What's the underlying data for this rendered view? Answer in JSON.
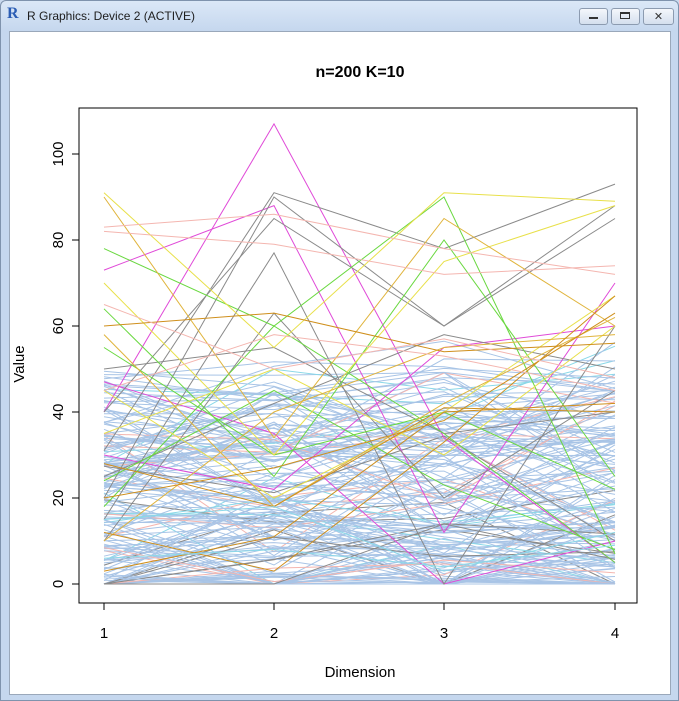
{
  "window": {
    "title": "R Graphics: Device 2 (ACTIVE)",
    "app_icon": "R",
    "controls": {
      "minimize_icon": "minimize-icon",
      "maximize_icon": "maximize-icon",
      "close_label": "✕"
    }
  },
  "chart_data": {
    "type": "line",
    "title": "n=200 K=10",
    "xlabel": "Dimension",
    "ylabel": "Value",
    "x": [
      1,
      2,
      3,
      4
    ],
    "xlim": [
      1,
      4
    ],
    "ylim": [
      0,
      107
    ],
    "x_ticks": [
      "1",
      "2",
      "3",
      "4"
    ],
    "y_ticks": [
      "0",
      "20",
      "40",
      "60",
      "80",
      "100"
    ],
    "y_tick_values": [
      0,
      20,
      40,
      60,
      80,
      100
    ],
    "grid": false,
    "legend": "none",
    "n_lines": 200,
    "colors": {
      "lightblue": "#a8c4e6",
      "darkgray": "#8a8a8a",
      "pink": "#f4b6b0",
      "yellow": "#e8e04a",
      "gold": "#e0b43c",
      "orange": "#cf8f1c",
      "green": "#6ad840",
      "magenta": "#e04ad8",
      "cyan": "#8ad8e8"
    },
    "series": [
      {
        "color": "magenta",
        "values": [
          40,
          107,
          34,
          5
        ]
      },
      {
        "color": "magenta",
        "values": [
          73,
          88,
          12,
          70
        ]
      },
      {
        "color": "magenta",
        "values": [
          47,
          35,
          0,
          10
        ]
      },
      {
        "color": "magenta",
        "values": [
          30,
          22,
          55,
          60
        ]
      },
      {
        "color": "darkgray",
        "values": [
          31,
          91,
          78,
          93
        ]
      },
      {
        "color": "darkgray",
        "values": [
          20,
          90,
          60,
          85
        ]
      },
      {
        "color": "darkgray",
        "values": [
          40,
          85,
          60,
          88
        ]
      },
      {
        "color": "darkgray",
        "values": [
          15,
          77,
          0,
          60
        ]
      },
      {
        "color": "darkgray",
        "values": [
          50,
          55,
          35,
          40
        ]
      },
      {
        "color": "darkgray",
        "values": [
          25,
          42,
          58,
          50
        ]
      },
      {
        "color": "darkgray",
        "values": [
          10,
          63,
          20,
          45
        ]
      },
      {
        "color": "green",
        "values": [
          78,
          60,
          90,
          7
        ]
      },
      {
        "color": "green",
        "values": [
          64,
          25,
          80,
          25
        ]
      },
      {
        "color": "green",
        "values": [
          24,
          45,
          23,
          8
        ]
      },
      {
        "color": "green",
        "values": [
          55,
          30,
          40,
          22
        ]
      },
      {
        "color": "green",
        "values": [
          18,
          60,
          35,
          5
        ]
      },
      {
        "color": "yellow",
        "values": [
          91,
          55,
          91,
          89
        ]
      },
      {
        "color": "yellow",
        "values": [
          70,
          30,
          75,
          88
        ]
      },
      {
        "color": "yellow",
        "values": [
          45,
          20,
          40,
          67
        ]
      },
      {
        "color": "yellow",
        "values": [
          35,
          50,
          30,
          60
        ]
      },
      {
        "color": "gold",
        "values": [
          90,
          34,
          85,
          60
        ]
      },
      {
        "color": "gold",
        "values": [
          10,
          40,
          55,
          58
        ]
      },
      {
        "color": "gold",
        "values": [
          58,
          18,
          42,
          62
        ]
      },
      {
        "color": "orange",
        "values": [
          20,
          27,
          38,
          63
        ]
      },
      {
        "color": "orange",
        "values": [
          3,
          11,
          40,
          42
        ]
      },
      {
        "color": "orange",
        "values": [
          60,
          63,
          54,
          56
        ]
      },
      {
        "color": "orange",
        "values": [
          12,
          3,
          33,
          67
        ]
      },
      {
        "color": "orange",
        "values": [
          28,
          18,
          41,
          40
        ]
      },
      {
        "color": "pink",
        "values": [
          83,
          86,
          78,
          72
        ]
      },
      {
        "color": "pink",
        "values": [
          82,
          79,
          72,
          74
        ]
      },
      {
        "color": "pink",
        "values": [
          65,
          50,
          57,
          48
        ]
      },
      {
        "color": "pink",
        "values": [
          45,
          58,
          53,
          45
        ]
      },
      {
        "color": "cyan",
        "values": [
          15,
          18,
          3,
          12
        ]
      },
      {
        "color": "cyan",
        "values": [
          6,
          8,
          4,
          9
        ]
      }
    ]
  }
}
